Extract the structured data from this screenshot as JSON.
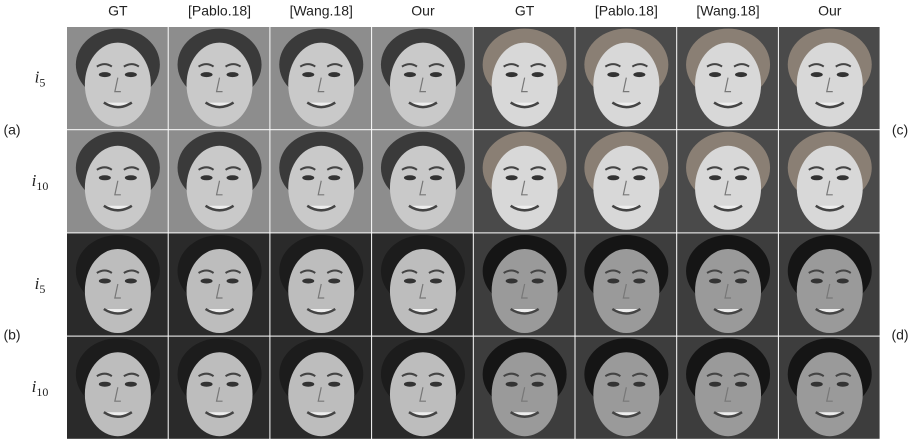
{
  "column_headers": [
    "GT",
    "[Pablo.18]",
    "[Wang.18]",
    "Our",
    "GT",
    "[Pablo.18]",
    "[Wang.18]",
    "Our"
  ],
  "row_labels": [
    {
      "base": "i",
      "sub": "5"
    },
    {
      "base": "i",
      "sub": "10"
    },
    {
      "base": "i",
      "sub": "5"
    },
    {
      "base": "i",
      "sub": "10"
    }
  ],
  "group_labels": {
    "left": [
      "(a)",
      "(b)"
    ],
    "right": [
      "(c)",
      "(d)"
    ]
  }
}
